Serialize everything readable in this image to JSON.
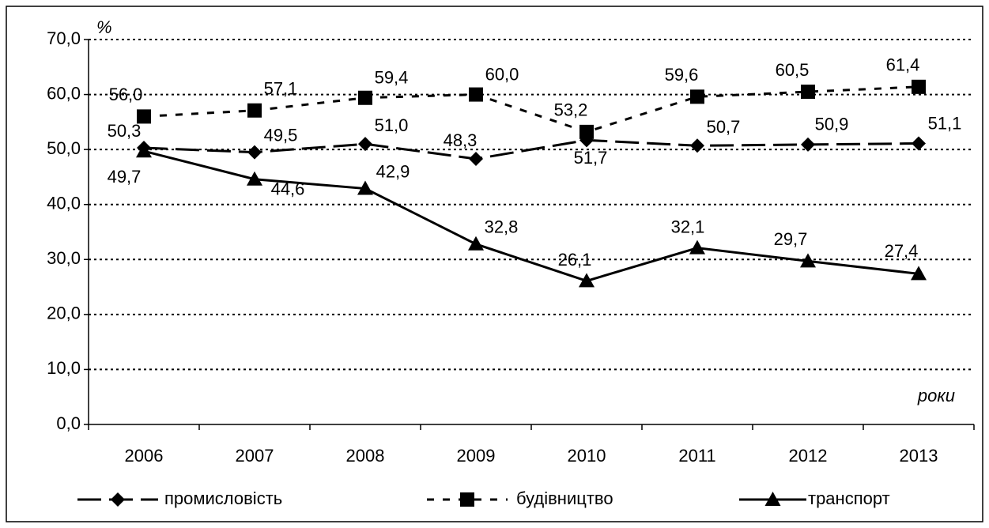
{
  "chart_data": {
    "type": "line",
    "y_label": "%",
    "x_label": "роки",
    "categories": [
      "2006",
      "2007",
      "2008",
      "2009",
      "2010",
      "2011",
      "2012",
      "2013"
    ],
    "series": [
      {
        "name": "промисловість",
        "color": "#000000",
        "marker": "diamond",
        "dash": "long",
        "values": [
          50.3,
          49.5,
          51.0,
          48.3,
          51.7,
          50.7,
          50.9,
          51.1
        ],
        "value_labels": [
          "50,3",
          "49,5",
          "51,0",
          "48,3",
          "51,7",
          "50,7",
          "50,9",
          "51,1"
        ]
      },
      {
        "name": "будівництво",
        "color": "#000000",
        "marker": "square",
        "dash": "short",
        "values": [
          56.0,
          57.1,
          59.4,
          60.0,
          53.2,
          59.6,
          60.5,
          61.4
        ],
        "value_labels": [
          "56,0",
          "57,1",
          "59,4",
          "60,0",
          "53,2",
          "59,6",
          "60,5",
          "61,4"
        ]
      },
      {
        "name": "транспорт",
        "color": "#000000",
        "marker": "triangle",
        "dash": "solid",
        "values": [
          49.7,
          44.6,
          42.9,
          32.8,
          26.1,
          32.1,
          29.7,
          27.4
        ],
        "value_labels": [
          "49,7",
          "44,6",
          "42,9",
          "32,8",
          "26,1",
          "32,1",
          "29,7",
          "27,4"
        ]
      }
    ],
    "ylim": [
      0,
      70
    ],
    "yticks": [
      {
        "value": 0,
        "label": "0,0"
      },
      {
        "value": 10,
        "label": "10,0"
      },
      {
        "value": 20,
        "label": "20,0"
      },
      {
        "value": 30,
        "label": "30,0"
      },
      {
        "value": 40,
        "label": "40,0"
      },
      {
        "value": 50,
        "label": "50,0"
      },
      {
        "value": 60,
        "label": "60,0"
      },
      {
        "value": 70,
        "label": "70,0"
      }
    ],
    "grid": true
  }
}
